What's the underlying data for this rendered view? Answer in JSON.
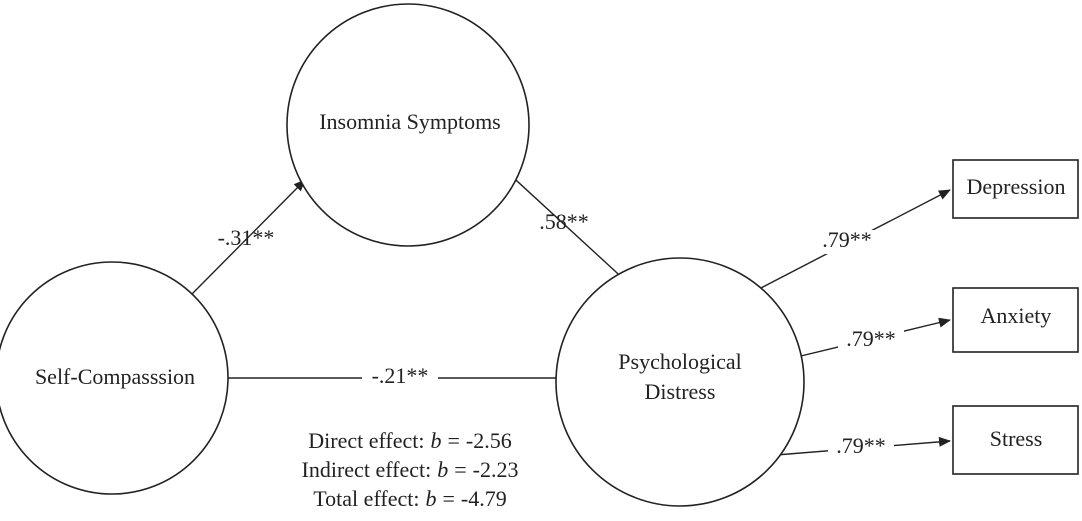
{
  "nodes": [
    {
      "label": "Self-Compasssion"
    },
    {
      "label": "Insomnia Symptoms"
    },
    {
      "label": "Psychological",
      "label2": "Distress"
    },
    {
      "label": "Depression"
    },
    {
      "label": "Anxiety"
    },
    {
      "label": "Stress"
    }
  ],
  "edges": [
    {
      "label": "-.31**"
    },
    {
      "label": ".58**"
    },
    {
      "label": "-.21**"
    },
    {
      "label": ".79**"
    },
    {
      "label": ".79**"
    },
    {
      "label": ".79**"
    }
  ],
  "effects": [
    {
      "label": "Direct effect:",
      "symbol": "b",
      "relation": "=",
      "value": -2.56
    },
    {
      "label": "Indirect effect:",
      "symbol": "b",
      "relation": "=",
      "value": -2.23
    },
    {
      "label": "Total effect:",
      "symbol": "b",
      "relation": "=",
      "value": -4.79
    }
  ]
}
